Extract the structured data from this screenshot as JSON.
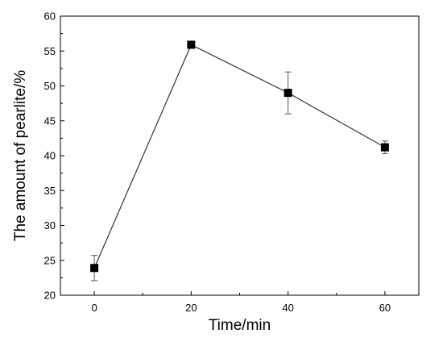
{
  "chart_data": {
    "type": "line",
    "xlabel": "Time/min",
    "ylabel": "The amount of pearlite/%",
    "xlim": [
      -7,
      67
    ],
    "ylim": [
      20,
      60
    ],
    "xticks": [
      0,
      20,
      40,
      60
    ],
    "yticks": [
      20,
      25,
      30,
      35,
      40,
      45,
      50,
      55,
      60
    ],
    "grid": false,
    "series": [
      {
        "x": [
          0,
          20,
          40,
          60
        ],
        "y": [
          23.9,
          55.9,
          49.0,
          41.2
        ],
        "error": [
          1.8,
          0.4,
          3.0,
          0.9
        ],
        "marker": "square",
        "color": "#000000"
      }
    ]
  }
}
